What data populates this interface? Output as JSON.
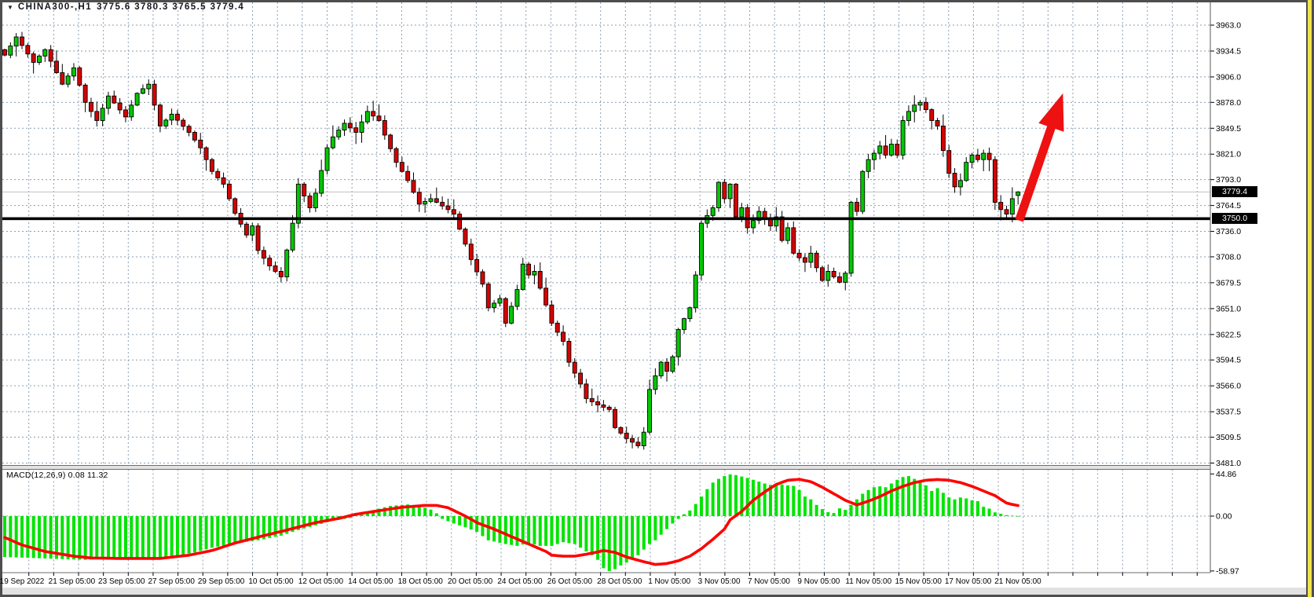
{
  "header": {
    "dropdown_icon": "▼",
    "symbol_period": "CHINA300-,H1",
    "ohlc": "3775.6 3780.3 3765.5 3779.4"
  },
  "price_axis": {
    "ticks": [
      "3963.0",
      "3934.5",
      "3906.0",
      "3878.0",
      "3849.5",
      "3821.0",
      "3793.0",
      "3764.5",
      "3736.0",
      "3708.0",
      "3679.5",
      "3651.0",
      "3622.5",
      "3594.5",
      "3566.0",
      "3537.5",
      "3509.5",
      "3481.0"
    ],
    "current_price": "3779.4",
    "support_line": "3750.0"
  },
  "macd_panel": {
    "label": "MACD(12,26,9)",
    "values": "0.08 11.32",
    "axis_ticks": [
      "44.86",
      "0.00",
      "-58.97"
    ]
  },
  "time_axis": {
    "labels": [
      "19 Sep 2022",
      "21 Sep 05:00",
      "23 Sep 05:00",
      "27 Sep 05:00",
      "29 Sep 05:00",
      "10 Oct 05:00",
      "12 Oct 05:00",
      "14 Oct 05:00",
      "18 Oct 05:00",
      "20 Oct 05:00",
      "24 Oct 05:00",
      "26 Oct 05:00",
      "28 Oct 05:00",
      "1 Nov 05:00",
      "3 Nov 05:00",
      "7 Nov 05:00",
      "9 Nov 05:00",
      "11 Nov 05:00",
      "15 Nov 05:00",
      "17 Nov 05:00",
      "21 Nov 05:00"
    ]
  },
  "colors": {
    "background": "#FFFFFF",
    "frame": "#4E4E4E",
    "frame_accent_yellow": "#F1E34C",
    "grid": "#8A9DB0",
    "candle_up": "#00C800",
    "candle_down": "#D80000",
    "candle_outline": "#000000",
    "macd_histogram": "#00E400",
    "macd_signal": "#FF0000",
    "arrow": "#EE1111",
    "support_line": "#000000",
    "current_price_line": "#C0C0C0",
    "axis_text": "#000000",
    "badge_bg": "#000000",
    "badge_text": "#FFFFFF",
    "separator_band": "#E2E2E2"
  },
  "chart_data": {
    "type": "candlestick",
    "symbol": "CHINA300",
    "timeframe": "H1",
    "title": "CHINA300-,H1 3775.6 3780.3 3765.5 3779.4",
    "price_range": {
      "min": 3481.0,
      "max": 3963.0
    },
    "current_price": 3779.4,
    "support_level": 3750.0,
    "last_candle": {
      "open": 3775.6,
      "high": 3780.3,
      "low": 3765.5,
      "close": 3779.4
    },
    "candle_count": 177,
    "close_path_anchors": [
      [
        0,
        3930
      ],
      [
        2,
        3950
      ],
      [
        5,
        3922
      ],
      [
        7,
        3936
      ],
      [
        10,
        3898
      ],
      [
        12,
        3916
      ],
      [
        14,
        3878
      ],
      [
        16,
        3858
      ],
      [
        18,
        3885
      ],
      [
        21,
        3862
      ],
      [
        23,
        3888
      ],
      [
        25,
        3898
      ],
      [
        27,
        3852
      ],
      [
        29,
        3865
      ],
      [
        32,
        3845
      ],
      [
        34,
        3828
      ],
      [
        36,
        3802
      ],
      [
        38,
        3788
      ],
      [
        40,
        3756
      ],
      [
        42,
        3732
      ],
      [
        43,
        3742
      ],
      [
        44,
        3715
      ],
      [
        46,
        3698
      ],
      [
        48,
        3686
      ],
      [
        50,
        3745
      ],
      [
        51,
        3788
      ],
      [
        53,
        3762
      ],
      [
        54,
        3778
      ],
      [
        56,
        3828
      ],
      [
        57,
        3840
      ],
      [
        59,
        3855
      ],
      [
        61,
        3845
      ],
      [
        63,
        3868
      ],
      [
        65,
        3858
      ],
      [
        66,
        3842
      ],
      [
        68,
        3812
      ],
      [
        70,
        3792
      ],
      [
        72,
        3766
      ],
      [
        74,
        3772
      ],
      [
        75,
        3768
      ],
      [
        77,
        3760
      ],
      [
        78,
        3755
      ],
      [
        80,
        3722
      ],
      [
        81,
        3705
      ],
      [
        83,
        3678
      ],
      [
        84,
        3652
      ],
      [
        86,
        3662
      ],
      [
        87,
        3635
      ],
      [
        89,
        3672
      ],
      [
        90,
        3700
      ],
      [
        91,
        3688
      ],
      [
        92,
        3692
      ],
      [
        94,
        3655
      ],
      [
        95,
        3635
      ],
      [
        97,
        3615
      ],
      [
        98,
        3592
      ],
      [
        100,
        3568
      ],
      [
        101,
        3552
      ],
      [
        103,
        3545
      ],
      [
        105,
        3540
      ],
      [
        106,
        3520
      ],
      [
        108,
        3508
      ],
      [
        110,
        3500
      ],
      [
        111,
        3515
      ],
      [
        112,
        3562
      ],
      [
        114,
        3592
      ],
      [
        115,
        3582
      ],
      [
        116,
        3598
      ],
      [
        117,
        3628
      ],
      [
        119,
        3652
      ],
      [
        120,
        3688
      ],
      [
        121,
        3745
      ],
      [
        123,
        3762
      ],
      [
        124,
        3790
      ],
      [
        125,
        3772
      ],
      [
        126,
        3788
      ],
      [
        127,
        3752
      ],
      [
        128,
        3762
      ],
      [
        129,
        3740
      ],
      [
        130,
        3748
      ],
      [
        131,
        3758
      ],
      [
        132,
        3750
      ],
      [
        133,
        3742
      ],
      [
        134,
        3752
      ],
      [
        135,
        3726
      ],
      [
        136,
        3740
      ],
      [
        137,
        3712
      ],
      [
        139,
        3702
      ],
      [
        140,
        3712
      ],
      [
        141,
        3696
      ],
      [
        142,
        3682
      ],
      [
        143,
        3692
      ],
      [
        145,
        3680
      ],
      [
        146,
        3690
      ],
      [
        147,
        3768
      ],
      [
        148,
        3758
      ],
      [
        149,
        3802
      ],
      [
        150,
        3815
      ],
      [
        151,
        3822
      ],
      [
        152,
        3830
      ],
      [
        153,
        3820
      ],
      [
        154,
        3832
      ],
      [
        155,
        3820
      ],
      [
        156,
        3858
      ],
      [
        157,
        3868
      ],
      [
        158,
        3875
      ],
      [
        159,
        3878
      ],
      [
        160,
        3870
      ],
      [
        161,
        3858
      ],
      [
        162,
        3852
      ],
      [
        163,
        3825
      ],
      [
        164,
        3800
      ],
      [
        165,
        3785
      ],
      [
        166,
        3792
      ],
      [
        167,
        3812
      ],
      [
        168,
        3820
      ],
      [
        169,
        3815
      ],
      [
        170,
        3822
      ],
      [
        171,
        3815
      ],
      [
        172,
        3768
      ],
      [
        173,
        3760
      ],
      [
        174,
        3755
      ],
      [
        175,
        3772
      ],
      [
        176,
        3779.4
      ]
    ],
    "macd": {
      "params": "12,26,9",
      "last_macd": 0.08,
      "last_signal": 11.32,
      "range": {
        "min": -58.97,
        "max": 44.86
      },
      "histogram_anchors": [
        [
          0,
          -44
        ],
        [
          5,
          -45
        ],
        [
          9,
          -46
        ],
        [
          14,
          -47
        ],
        [
          20,
          -45
        ],
        [
          24,
          -46
        ],
        [
          29,
          -44
        ],
        [
          33,
          -39
        ],
        [
          36,
          -34
        ],
        [
          40,
          -29
        ],
        [
          44,
          -26
        ],
        [
          48,
          -21
        ],
        [
          51,
          -15
        ],
        [
          54,
          -10
        ],
        [
          57,
          -5
        ],
        [
          60,
          -2
        ],
        [
          61,
          2
        ],
        [
          63,
          5
        ],
        [
          65,
          8
        ],
        [
          67,
          11
        ],
        [
          70,
          12.5
        ],
        [
          72,
          11
        ],
        [
          74,
          7
        ],
        [
          75,
          3
        ],
        [
          76,
          -3
        ],
        [
          78,
          -8
        ],
        [
          80,
          -12
        ],
        [
          82,
          -17
        ],
        [
          84,
          -26
        ],
        [
          87,
          -30
        ],
        [
          89,
          -32
        ],
        [
          91,
          -29
        ],
        [
          93,
          -32
        ],
        [
          95,
          -32
        ],
        [
          97,
          -28
        ],
        [
          99,
          -30
        ],
        [
          101,
          -38
        ],
        [
          102,
          -42
        ],
        [
          103,
          -47
        ],
        [
          104,
          -56
        ],
        [
          105,
          -59
        ],
        [
          106,
          -57
        ],
        [
          107,
          -53
        ],
        [
          108,
          -50
        ],
        [
          109,
          -46
        ],
        [
          110,
          -42
        ],
        [
          111,
          -36
        ],
        [
          112,
          -30
        ],
        [
          113,
          -26
        ],
        [
          114,
          -20
        ],
        [
          115,
          -14
        ],
        [
          116,
          -8
        ],
        [
          117,
          -3
        ],
        [
          118,
          2
        ],
        [
          119,
          6
        ],
        [
          120,
          13
        ],
        [
          121,
          21
        ],
        [
          122,
          29
        ],
        [
          123,
          36
        ],
        [
          124,
          40
        ],
        [
          125,
          43
        ],
        [
          126,
          44.8
        ],
        [
          127,
          44
        ],
        [
          128,
          42.5
        ],
        [
          129,
          41
        ],
        [
          130,
          39
        ],
        [
          131,
          37
        ],
        [
          132,
          35
        ],
        [
          133,
          33.5
        ],
        [
          134,
          33
        ],
        [
          135,
          34
        ],
        [
          136,
          33
        ],
        [
          137,
          32.5
        ],
        [
          138,
          28
        ],
        [
          139,
          21
        ],
        [
          140,
          18
        ],
        [
          141,
          12
        ],
        [
          142,
          7.5
        ],
        [
          143,
          4.2
        ],
        [
          144,
          3.3
        ],
        [
          145,
          8.3
        ],
        [
          146,
          6.7
        ],
        [
          147,
          12
        ],
        [
          148,
          18
        ],
        [
          149,
          24
        ],
        [
          150,
          28
        ],
        [
          151,
          31
        ],
        [
          152,
          32
        ],
        [
          153,
          31
        ],
        [
          154,
          35
        ],
        [
          155,
          39
        ],
        [
          156,
          42
        ],
        [
          157,
          43
        ],
        [
          158,
          40
        ],
        [
          159,
          37
        ],
        [
          160,
          33
        ],
        [
          161,
          27
        ],
        [
          162,
          30
        ],
        [
          163,
          25
        ],
        [
          164,
          20
        ],
        [
          165,
          18
        ],
        [
          166,
          20
        ],
        [
          167,
          19
        ],
        [
          168,
          17
        ],
        [
          169,
          16
        ],
        [
          170,
          10
        ],
        [
          171,
          8
        ],
        [
          172,
          4
        ],
        [
          173,
          2.5
        ],
        [
          174,
          1
        ],
        [
          175,
          0.5
        ],
        [
          176,
          0.08
        ]
      ],
      "signal_anchors": [
        [
          0,
          -23
        ],
        [
          3,
          -31
        ],
        [
          7,
          -38
        ],
        [
          12,
          -43
        ],
        [
          15,
          -45
        ],
        [
          20,
          -45.5
        ],
        [
          27,
          -45.5
        ],
        [
          32,
          -42
        ],
        [
          36,
          -37
        ],
        [
          40,
          -29
        ],
        [
          45,
          -21
        ],
        [
          49,
          -15
        ],
        [
          54,
          -7
        ],
        [
          58,
          -2.5
        ],
        [
          61,
          2
        ],
        [
          65,
          5.8
        ],
        [
          69,
          9.5
        ],
        [
          73,
          11.5
        ],
        [
          75,
          11.5
        ],
        [
          77,
          9
        ],
        [
          80,
          0
        ],
        [
          82,
          -7
        ],
        [
          85,
          -14
        ],
        [
          88,
          -22
        ],
        [
          91,
          -30
        ],
        [
          94,
          -38
        ],
        [
          95,
          -42
        ],
        [
          97,
          -43
        ],
        [
          99,
          -43
        ],
        [
          101,
          -41
        ],
        [
          103,
          -38.5
        ],
        [
          104,
          -37
        ],
        [
          106,
          -39
        ],
        [
          108,
          -44
        ],
        [
          111,
          -49
        ],
        [
          113,
          -52
        ],
        [
          115,
          -51
        ],
        [
          117,
          -48
        ],
        [
          119,
          -43
        ],
        [
          121,
          -35
        ],
        [
          123,
          -25
        ],
        [
          125,
          -14
        ],
        [
          126,
          -4
        ],
        [
          128,
          5
        ],
        [
          130,
          17
        ],
        [
          132,
          26
        ],
        [
          134,
          34
        ],
        [
          136,
          38.5
        ],
        [
          138,
          39.5
        ],
        [
          140,
          37
        ],
        [
          142,
          31
        ],
        [
          144,
          24
        ],
        [
          146,
          17
        ],
        [
          148,
          12
        ],
        [
          150,
          16
        ],
        [
          152,
          21
        ],
        [
          154,
          27
        ],
        [
          156,
          32
        ],
        [
          158,
          36
        ],
        [
          160,
          38.5
        ],
        [
          162,
          39.3
        ],
        [
          164,
          38.5
        ],
        [
          166,
          36
        ],
        [
          168,
          32
        ],
        [
          170,
          27
        ],
        [
          172,
          22
        ],
        [
          173,
          18
        ],
        [
          174,
          14
        ],
        [
          175,
          12.5
        ],
        [
          176,
          11.32
        ]
      ]
    },
    "annotations": [
      {
        "type": "arrow",
        "from_candle": 176.2,
        "from_price": 3748,
        "to_candle": 183.8,
        "to_price": 3888,
        "color": "#EE1111"
      }
    ]
  }
}
